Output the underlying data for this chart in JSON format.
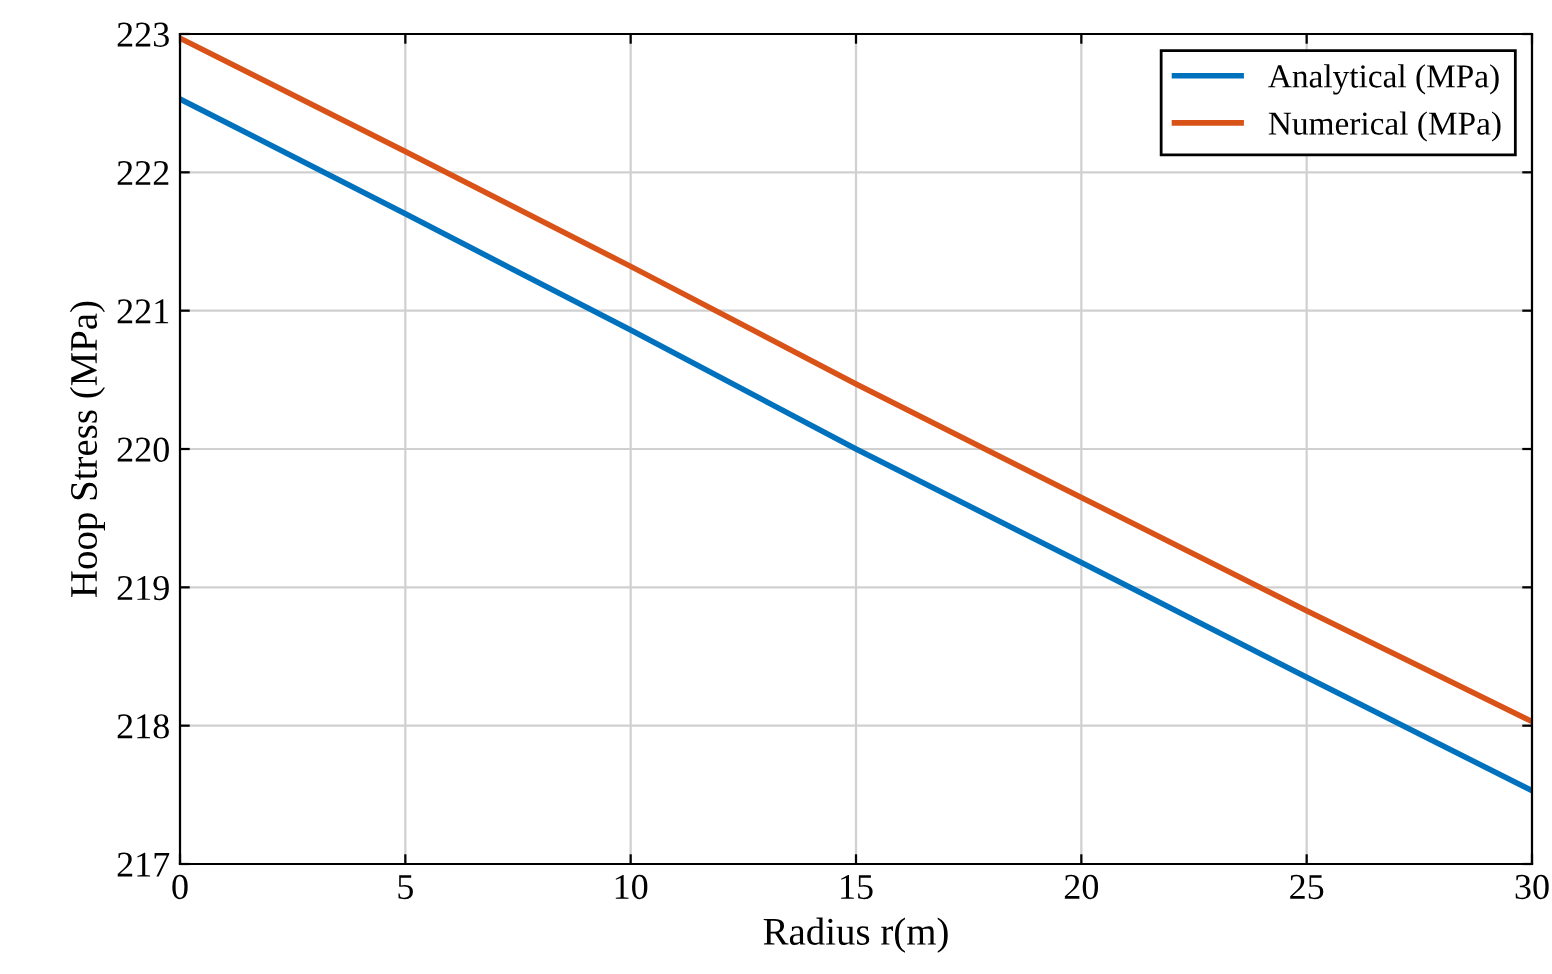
{
  "chart_data": {
    "type": "line",
    "xlabel": "Radius r(m)",
    "ylabel": "Hoop Stress (MPa)",
    "x": [
      0,
      5,
      10,
      15,
      20,
      25,
      30
    ],
    "series": [
      {
        "name": "Analytical (MPa)",
        "color": "#0072bd",
        "values": [
          222.53,
          221.7,
          220.86,
          220.0,
          219.18,
          218.35,
          217.53
        ]
      },
      {
        "name": "Numerical (MPa)",
        "color": "#d95319",
        "values": [
          222.97,
          222.15,
          221.32,
          220.47,
          219.65,
          218.83,
          218.03
        ]
      }
    ],
    "xlim": [
      0,
      30
    ],
    "xticks": [
      0,
      5,
      10,
      15,
      20,
      25,
      30
    ],
    "ylim": [
      217,
      223
    ],
    "yticks": [
      217,
      218,
      219,
      220,
      221,
      222,
      223
    ],
    "grid": true,
    "legend": "top right",
    "marker": "none",
    "line_style": "solid"
  }
}
